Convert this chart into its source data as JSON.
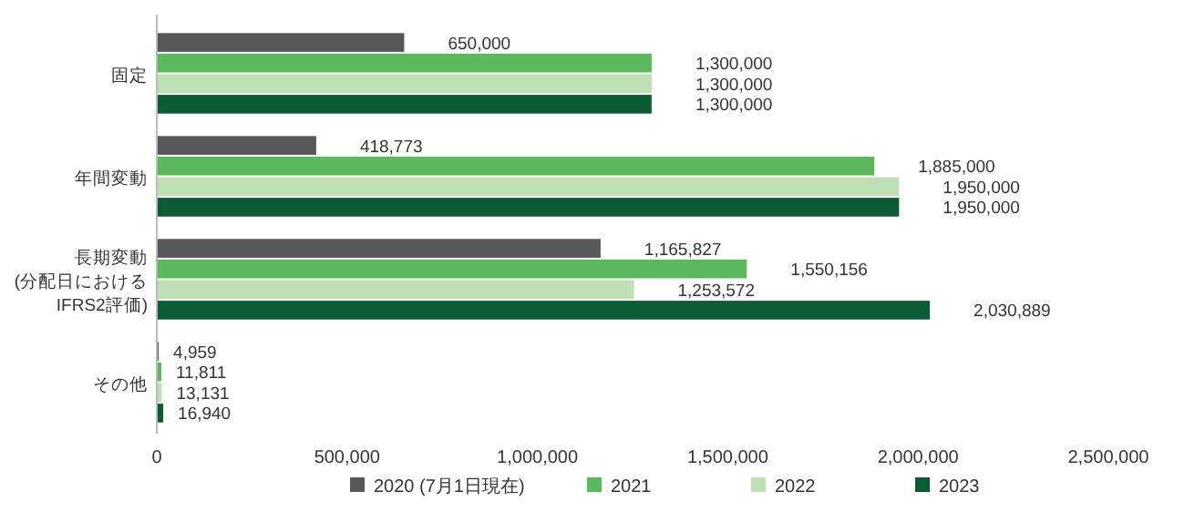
{
  "chart_data": {
    "type": "bar",
    "orientation": "horizontal",
    "categories": [
      "固定",
      "年間変動",
      "長期変動\n(分配日における\nIFRS2評価)",
      "その他"
    ],
    "series": [
      {
        "name": "2020 (7月1日現在)",
        "color": "#58585a",
        "values": [
          650000,
          418773,
          1165827,
          4959
        ],
        "value_labels": [
          "650,000",
          "418,773",
          "1,165,827",
          "4,959"
        ]
      },
      {
        "name": "2021",
        "color": "#5cb85c",
        "values": [
          1300000,
          1885000,
          1550156,
          11811
        ],
        "value_labels": [
          "1,300,000",
          "1,885,000",
          "1,550,156",
          "11,811"
        ]
      },
      {
        "name": "2022",
        "color": "#bfe0b5",
        "values": [
          1300000,
          1950000,
          1253572,
          13131
        ],
        "value_labels": [
          "1,300,000",
          "1,950,000",
          "1,253,572",
          "13,131"
        ]
      },
      {
        "name": "2023",
        "color": "#0b5b34",
        "values": [
          1300000,
          1950000,
          2030889,
          16940
        ],
        "value_labels": [
          "1,300,000",
          "1,950,000",
          "2,030,889",
          "16,940"
        ]
      }
    ],
    "xlim": [
      0,
      2500000
    ],
    "xticks": [
      0,
      {
        "value": 500000,
        "label": "500,000"
      },
      {
        "value": 1000000,
        "label": "1,000,000"
      },
      {
        "value": 1500000,
        "label": "1,500,000"
      },
      {
        "value": 2000000,
        "label": "2,000,000"
      },
      {
        "value": 2500000,
        "label": "2,500,000"
      }
    ],
    "grid": false,
    "legend": "bottom"
  }
}
